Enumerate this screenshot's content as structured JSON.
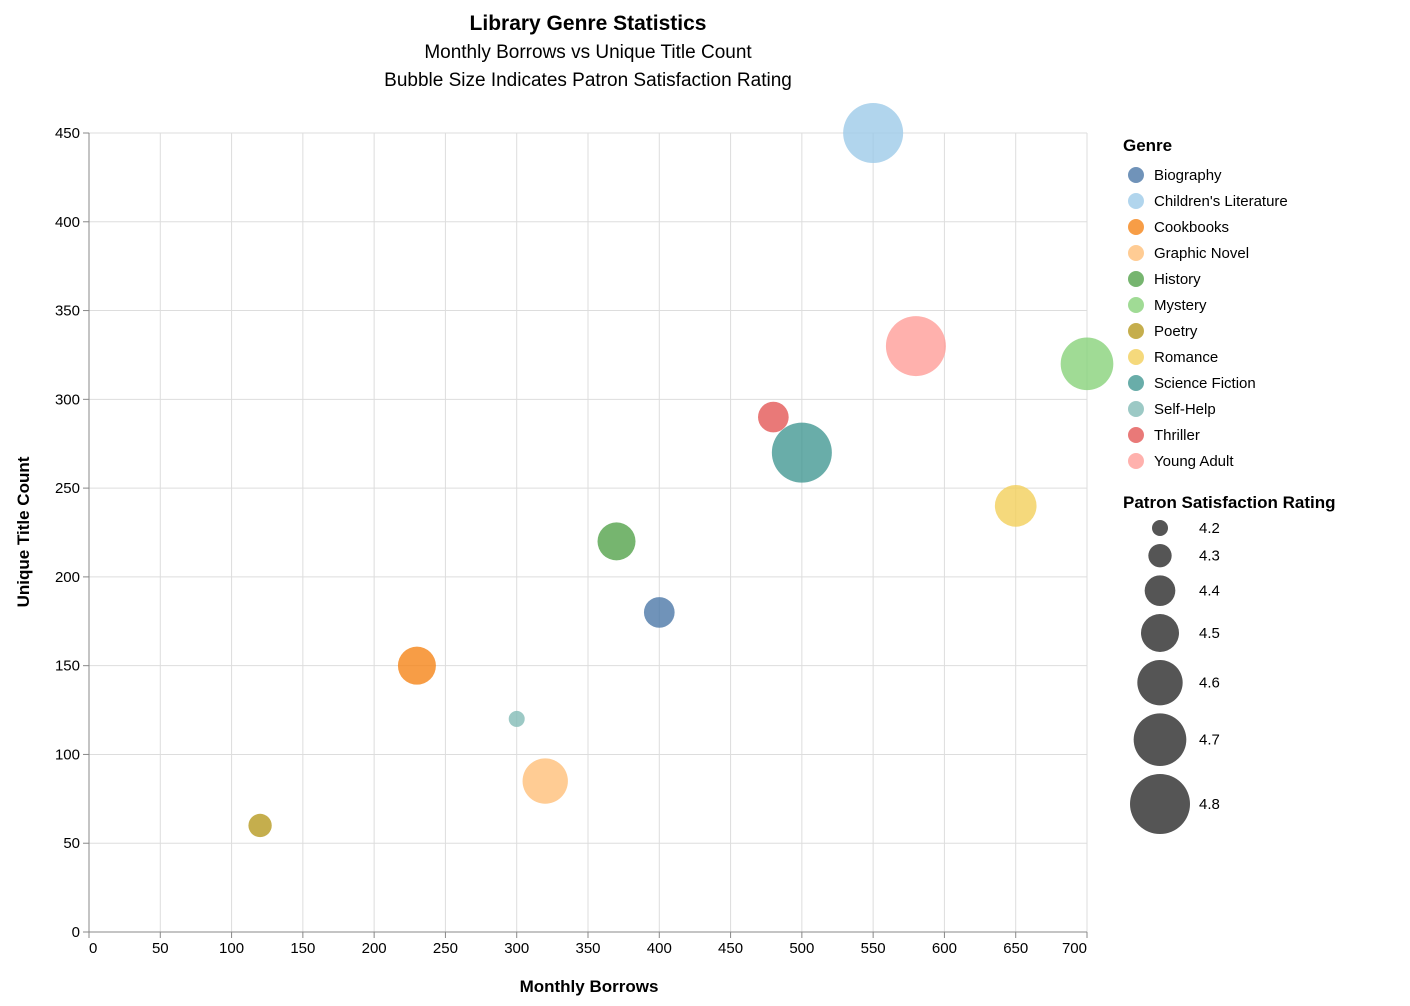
{
  "chart_data": {
    "type": "scatter",
    "title": "Library Genre Statistics",
    "subtitle": [
      "Monthly Borrows vs Unique Title Count",
      "Bubble Size Indicates Patron Satisfaction Rating"
    ],
    "xlabel": "Monthly Borrows",
    "ylabel": "Unique Title Count",
    "xlim": [
      0,
      700
    ],
    "ylim": [
      0,
      450
    ],
    "xticks": [
      0,
      50,
      100,
      150,
      200,
      250,
      300,
      350,
      400,
      450,
      500,
      550,
      600,
      650,
      700
    ],
    "yticks": [
      0,
      50,
      100,
      150,
      200,
      250,
      300,
      350,
      400,
      450
    ],
    "grid": true,
    "legend_placement": "right",
    "color_legend_title": "Genre",
    "size_legend_title": "Patron Satisfaction Rating",
    "size_legend_values": [
      4.2,
      4.3,
      4.4,
      4.5,
      4.6,
      4.7,
      4.8
    ],
    "points": [
      {
        "genre": "Biography",
        "x": 400,
        "y": 180,
        "rating": 4.4,
        "color": "#4c78a8"
      },
      {
        "genre": "Children's Literature",
        "x": 550,
        "y": 450,
        "rating": 4.8,
        "color": "#9ecae9"
      },
      {
        "genre": "Cookbooks",
        "x": 230,
        "y": 150,
        "rating": 4.5,
        "color": "#f58518"
      },
      {
        "genre": "Graphic Novel",
        "x": 320,
        "y": 85,
        "rating": 4.6,
        "color": "#ffbf79"
      },
      {
        "genre": "History",
        "x": 370,
        "y": 220,
        "rating": 4.5,
        "color": "#54a24b"
      },
      {
        "genre": "Mystery",
        "x": 700,
        "y": 320,
        "rating": 4.7,
        "color": "#88d27a"
      },
      {
        "genre": "Poetry",
        "x": 120,
        "y": 60,
        "rating": 4.3,
        "color": "#b79a20"
      },
      {
        "genre": "Romance",
        "x": 650,
        "y": 240,
        "rating": 4.55,
        "color": "#f2cf5b"
      },
      {
        "genre": "Science Fiction",
        "x": 500,
        "y": 270,
        "rating": 4.8,
        "color": "#439894"
      },
      {
        "genre": "Self-Help",
        "x": 300,
        "y": 120,
        "rating": 4.2,
        "color": "#83bcb6"
      },
      {
        "genre": "Thriller",
        "x": 480,
        "y": 290,
        "rating": 4.4,
        "color": "#e45756"
      },
      {
        "genre": "Young Adult",
        "x": 580,
        "y": 330,
        "rating": 4.8,
        "color": "#ff9d98"
      }
    ]
  }
}
